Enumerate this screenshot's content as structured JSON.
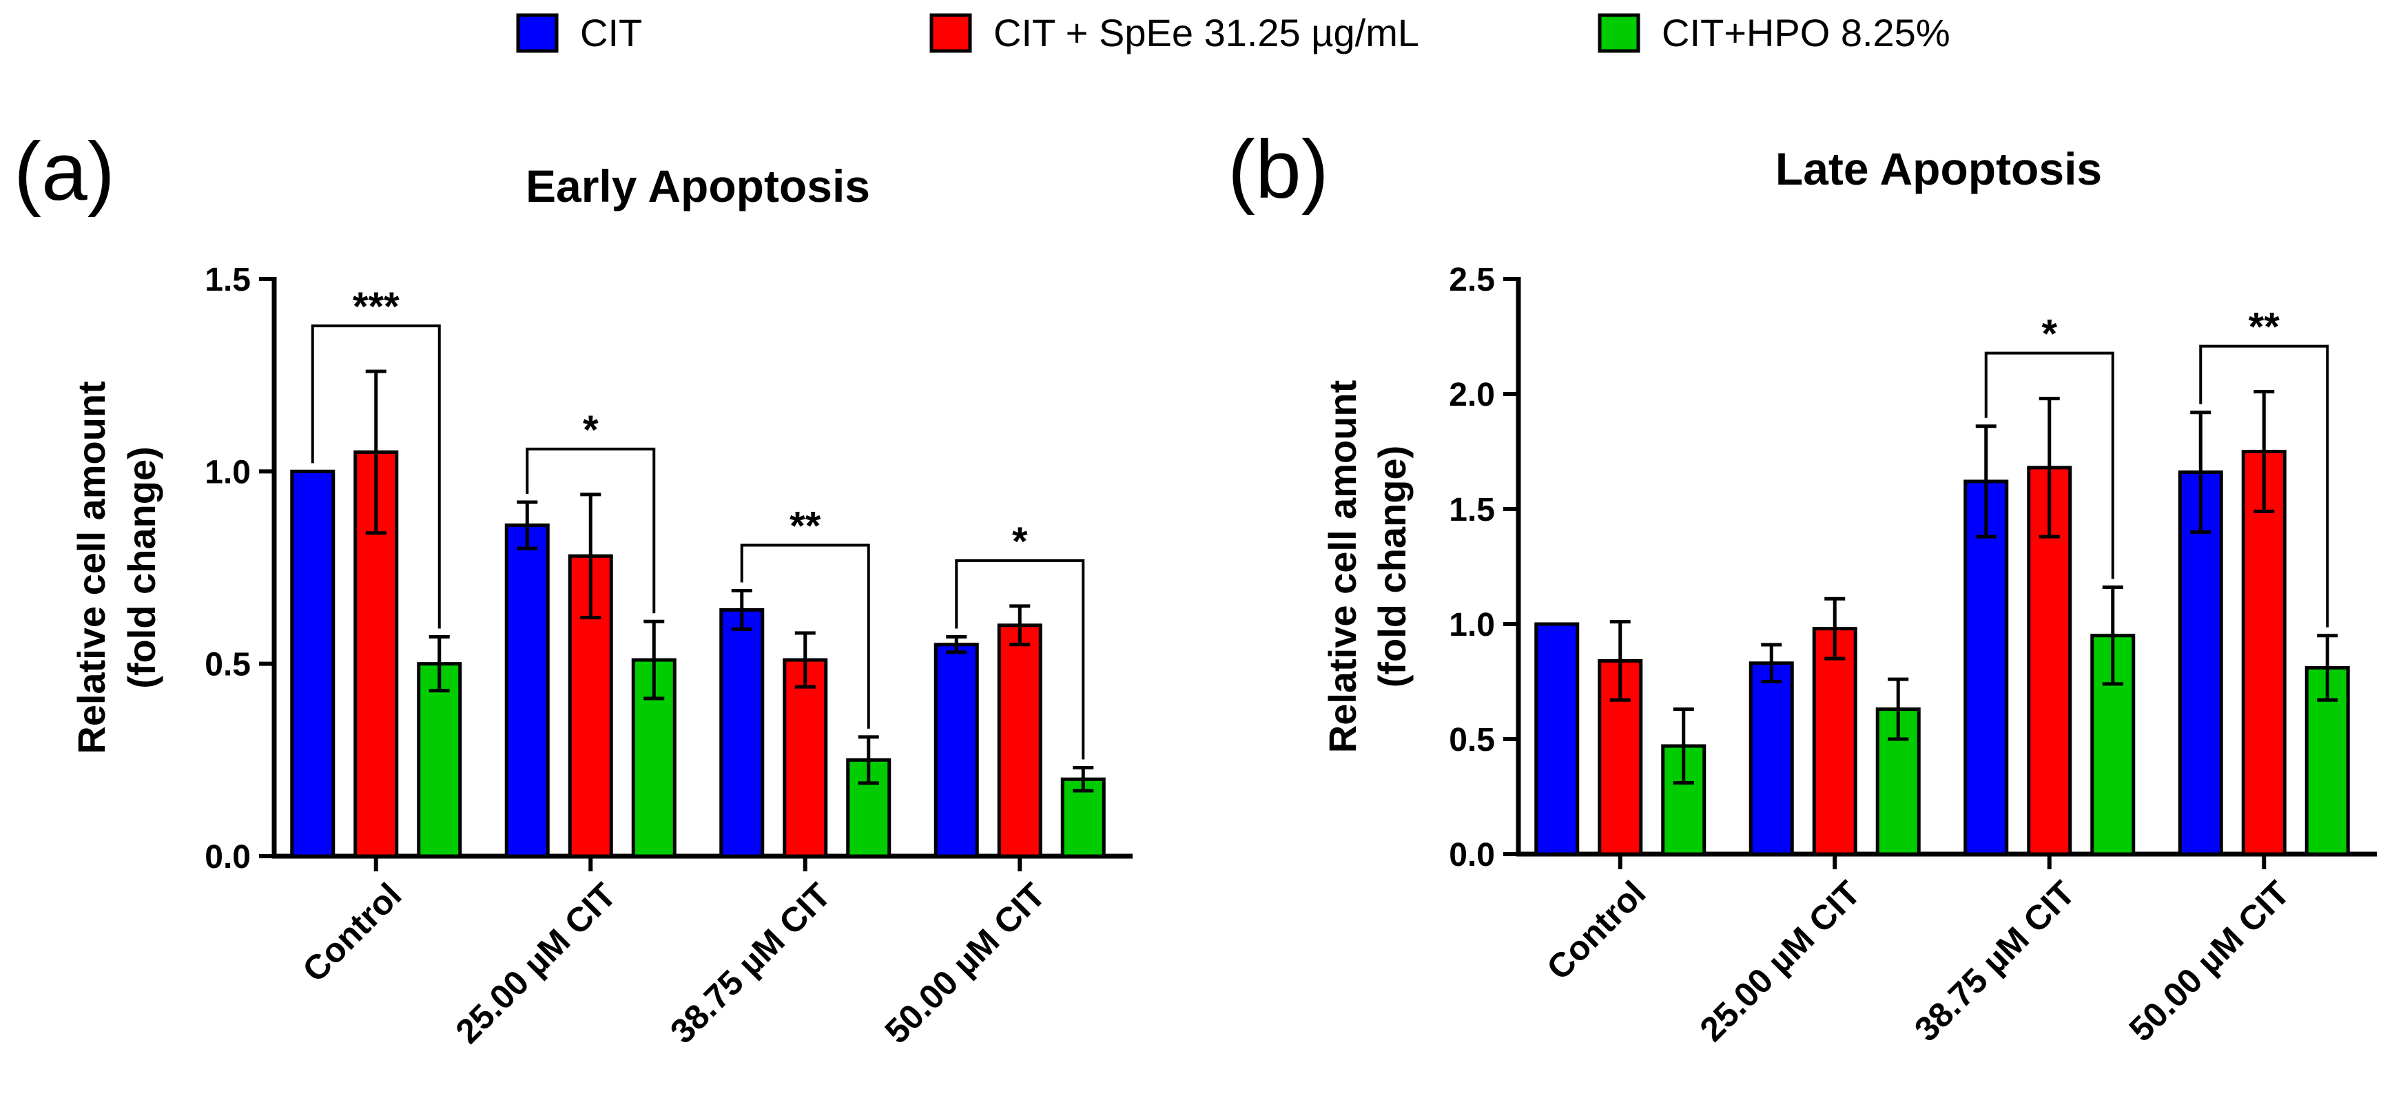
{
  "legend": [
    {
      "label": "CIT",
      "color": "#0000ff"
    },
    {
      "label": "CIT + SpEe 31.25 µg/mL",
      "color": "#ff0000"
    },
    {
      "label": "CIT+HPO 8.25%",
      "color": "#00cc00"
    }
  ],
  "chart_data": [
    {
      "type": "bar",
      "panel_label": "(a)",
      "title": "Early Apoptosis",
      "ylabel_line1": "Relative cell amount",
      "ylabel_line2": "(fold change)",
      "xlabel": "",
      "ylim": [
        0,
        1.5
      ],
      "yticks": [
        0.0,
        0.5,
        1.0,
        1.5
      ],
      "ytick_labels": [
        "0.0",
        "0.5",
        "1.0",
        "1.5"
      ],
      "categories": [
        "Control",
        "25.00 µM CIT",
        "38.75 µM CIT",
        "50.00 µM CIT"
      ],
      "series": [
        {
          "name": "CIT",
          "values": [
            1.0,
            0.86,
            0.64,
            0.55
          ],
          "errors": [
            0.0,
            0.06,
            0.05,
            0.02
          ]
        },
        {
          "name": "CIT + SpEe 31.25 µg/mL",
          "values": [
            1.05,
            0.78,
            0.51,
            0.6
          ],
          "errors": [
            0.21,
            0.16,
            0.07,
            0.05
          ]
        },
        {
          "name": "CIT+HPO 8.25%",
          "values": [
            0.5,
            0.51,
            0.25,
            0.2
          ],
          "errors": [
            0.07,
            0.1,
            0.06,
            0.03
          ]
        }
      ],
      "significance": [
        {
          "category_index": 0,
          "from_series": 0,
          "to_series": 2,
          "label": "***"
        },
        {
          "category_index": 1,
          "from_series": 0,
          "to_series": 2,
          "label": "*"
        },
        {
          "category_index": 2,
          "from_series": 0,
          "to_series": 2,
          "label": "**"
        },
        {
          "category_index": 3,
          "from_series": 0,
          "to_series": 2,
          "label": "*"
        }
      ]
    },
    {
      "type": "bar",
      "panel_label": "(b)",
      "title": "Late Apoptosis",
      "ylabel_line1": "Relative cell amount",
      "ylabel_line2": "(fold change)",
      "xlabel": "",
      "ylim": [
        0,
        2.5
      ],
      "yticks": [
        0.0,
        0.5,
        1.0,
        1.5,
        2.0,
        2.5
      ],
      "ytick_labels": [
        "0.0",
        "0.5",
        "1.0",
        "1.5",
        "2.0",
        "2.5"
      ],
      "categories": [
        "Control",
        "25.00 µM CIT",
        "38.75 µM CIT",
        "50.00 µM CIT"
      ],
      "series": [
        {
          "name": "CIT",
          "values": [
            1.0,
            0.83,
            1.62,
            1.66
          ],
          "errors": [
            0.0,
            0.08,
            0.24,
            0.26
          ]
        },
        {
          "name": "CIT + SpEe 31.25 µg/mL",
          "values": [
            0.84,
            0.98,
            1.68,
            1.75
          ],
          "errors": [
            0.17,
            0.13,
            0.3,
            0.26
          ]
        },
        {
          "name": "CIT+HPO 8.25%",
          "values": [
            0.47,
            0.63,
            0.95,
            0.81
          ],
          "errors": [
            0.16,
            0.13,
            0.21,
            0.14
          ]
        }
      ],
      "significance": [
        {
          "category_index": 2,
          "from_series": 0,
          "to_series": 2,
          "label": "*"
        },
        {
          "category_index": 3,
          "from_series": 0,
          "to_series": 2,
          "label": "**"
        }
      ]
    }
  ]
}
